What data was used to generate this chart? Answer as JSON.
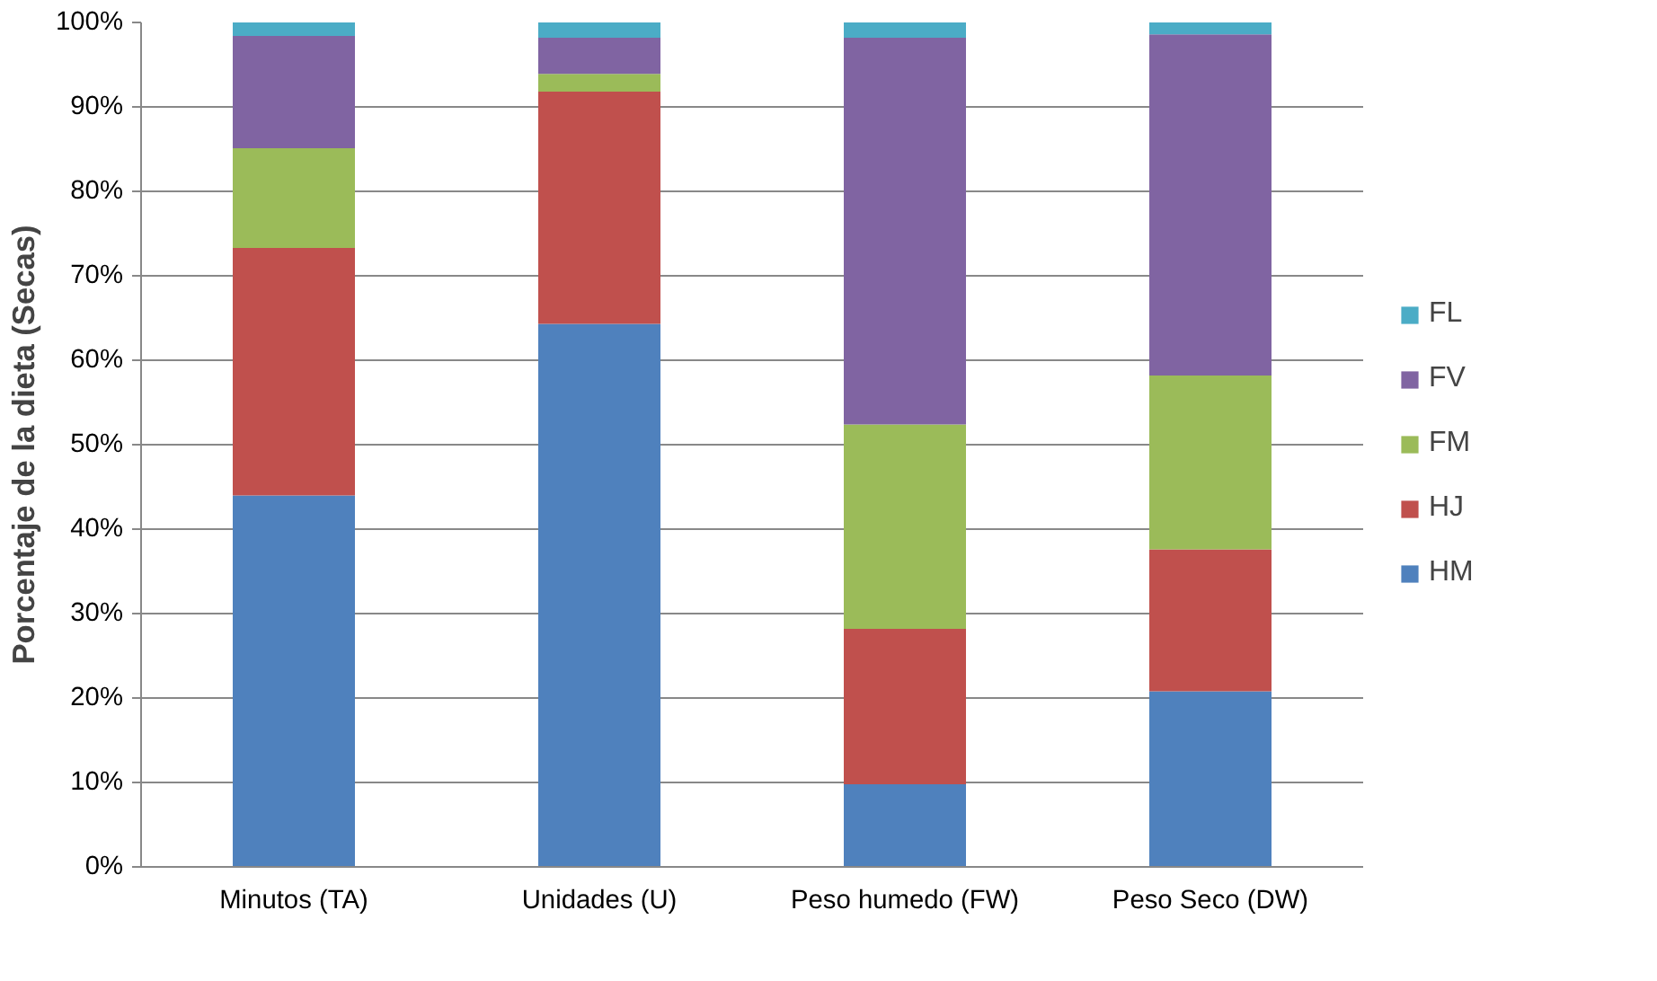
{
  "chart_data": {
    "type": "bar",
    "stacked": true,
    "ylabel": "Porcentaje de la dieta (Secas)",
    "categories": [
      "Minutos (TA)",
      "Unidades (U)",
      "Peso humedo (FW)",
      "Peso Seco (DW)"
    ],
    "series": [
      {
        "name": "HM",
        "color": "#4f81bd",
        "values": [
          44.0,
          64.3,
          9.8,
          20.8
        ]
      },
      {
        "name": "HJ",
        "color": "#c0504d",
        "values": [
          29.3,
          27.5,
          18.4,
          16.8
        ]
      },
      {
        "name": "FM",
        "color": "#9bbb59",
        "values": [
          11.8,
          2.1,
          24.2,
          20.6
        ]
      },
      {
        "name": "FV",
        "color": "#8064a2",
        "values": [
          13.3,
          4.3,
          45.8,
          40.4
        ]
      },
      {
        "name": "FL",
        "color": "#4bacc6",
        "values": [
          1.6,
          1.8,
          1.8,
          1.4
        ]
      }
    ],
    "ylim": [
      0,
      100
    ],
    "yticks": [
      {
        "value": 0,
        "label": "0%"
      },
      {
        "value": 10,
        "label": "10%"
      },
      {
        "value": 20,
        "label": "20%"
      },
      {
        "value": 30,
        "label": "30%"
      },
      {
        "value": 40,
        "label": "40%"
      },
      {
        "value": 50,
        "label": "50%"
      },
      {
        "value": 60,
        "label": "60%"
      },
      {
        "value": 70,
        "label": "70%"
      },
      {
        "value": 80,
        "label": "80%"
      },
      {
        "value": 90,
        "label": "90%"
      },
      {
        "value": 100,
        "label": "100%"
      }
    ],
    "grid": "y",
    "legend": "right"
  }
}
